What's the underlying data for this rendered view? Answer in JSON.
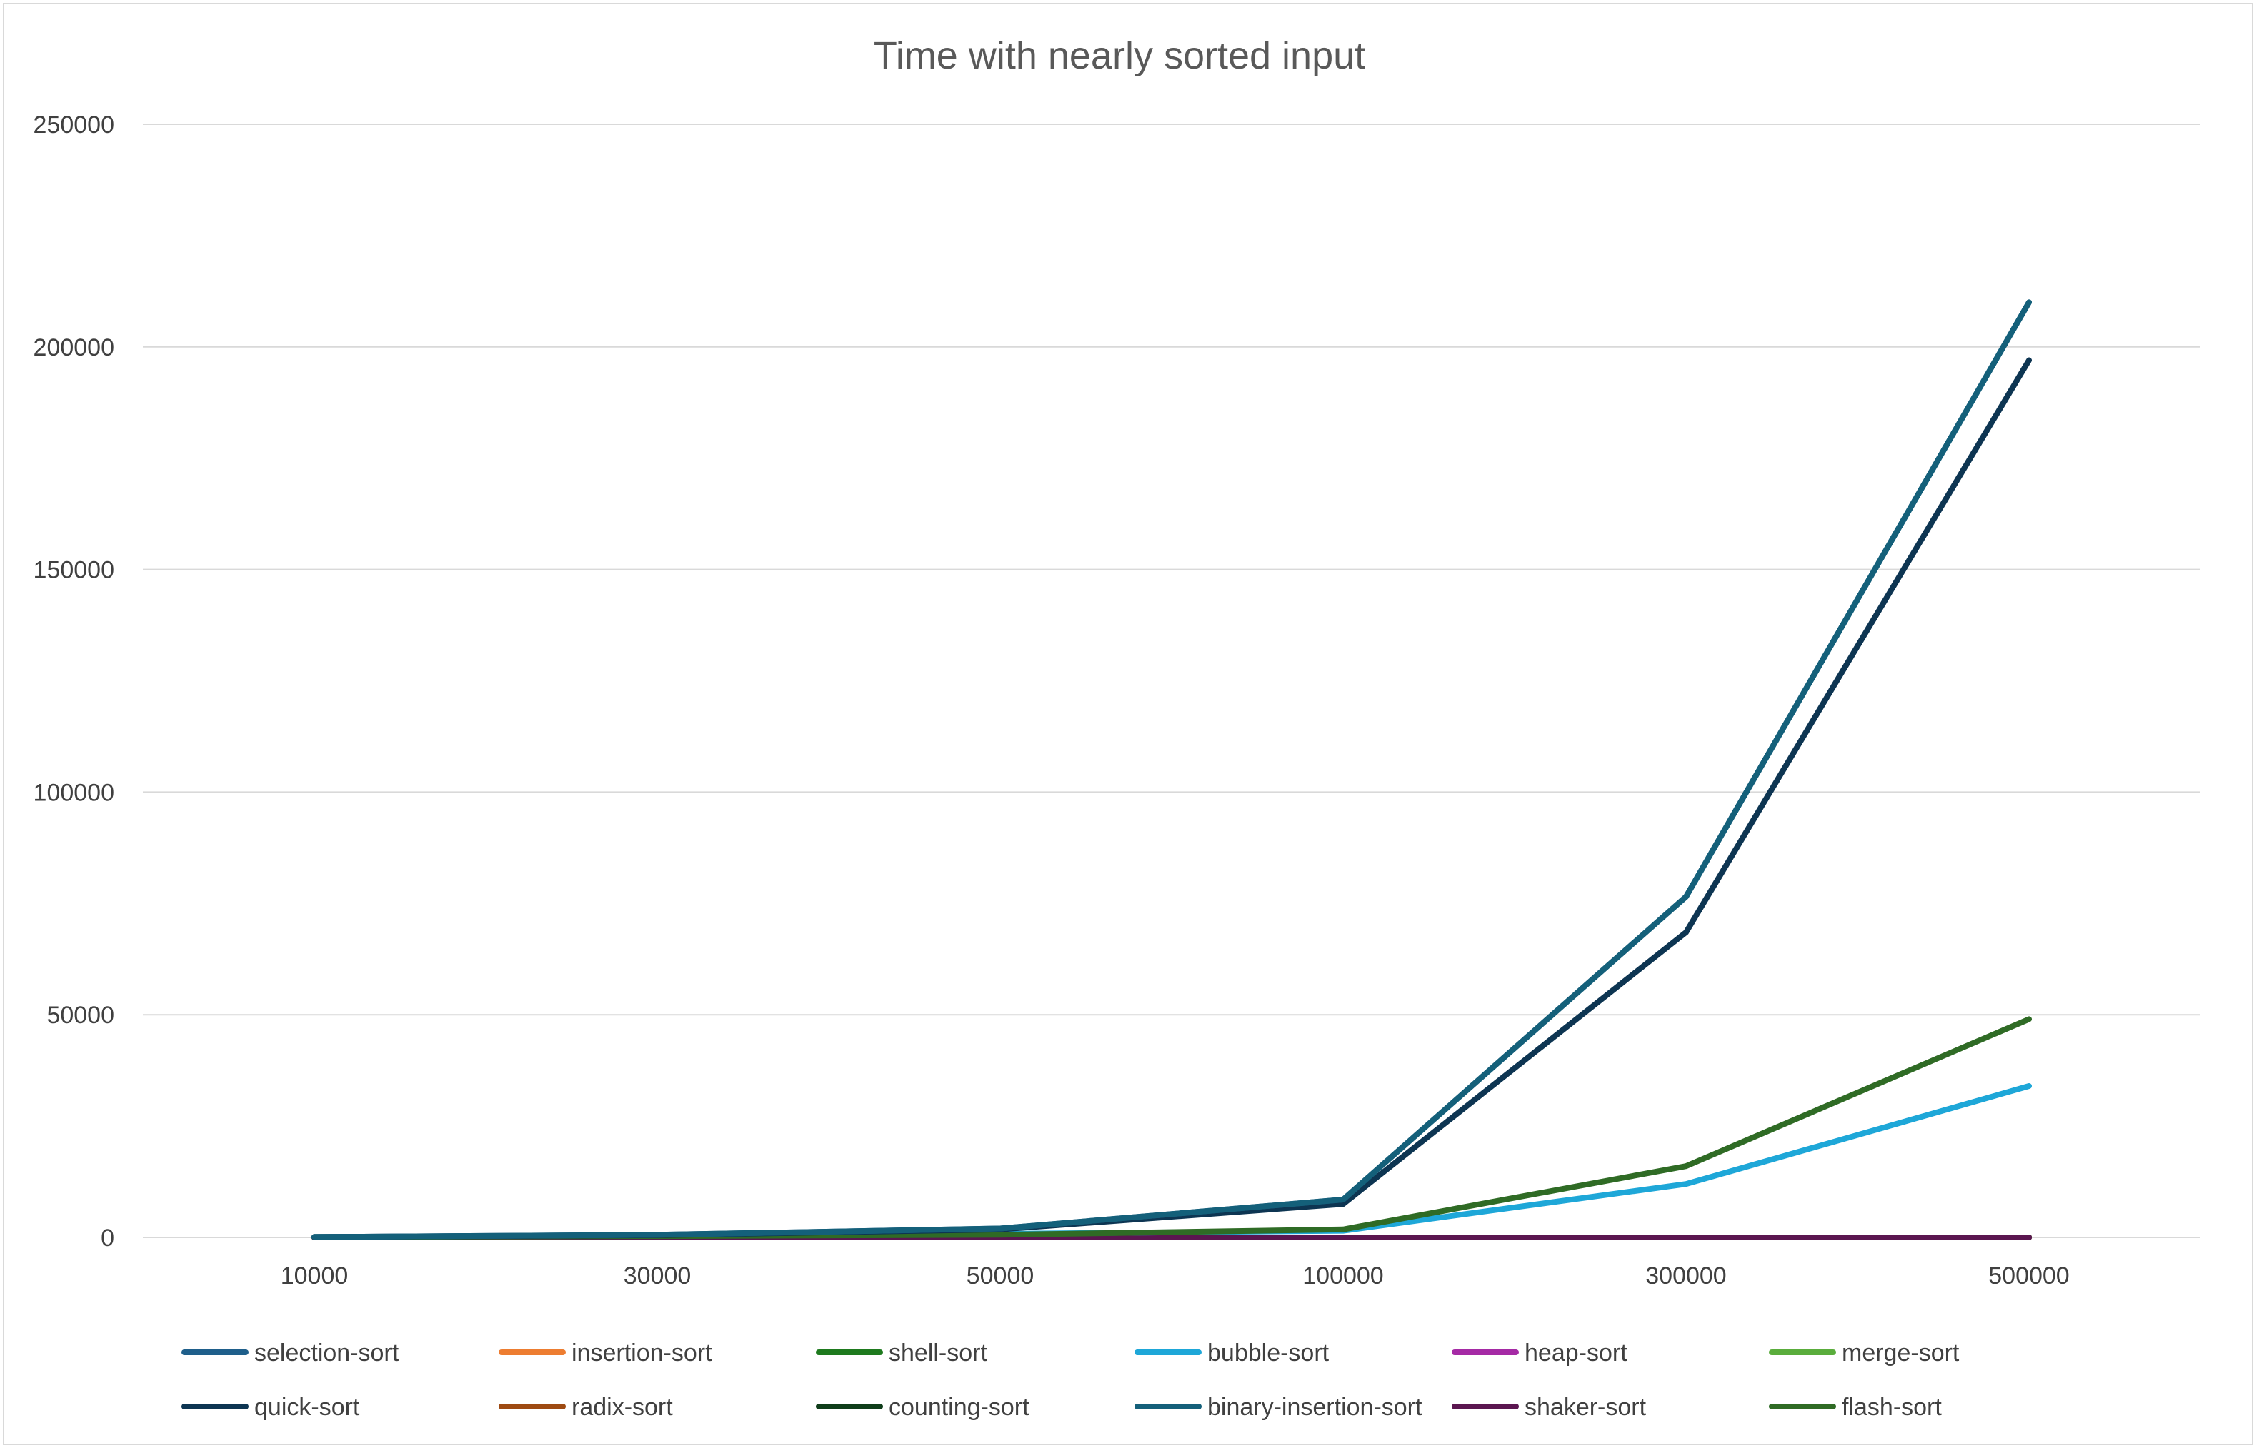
{
  "chart_data": {
    "type": "line",
    "title": "Time with nearly sorted input",
    "xlabel": "",
    "ylabel": "",
    "categories": [
      "10000",
      "30000",
      "50000",
      "100000",
      "300000",
      "500000"
    ],
    "ylim": [
      0,
      250000
    ],
    "yticks": [
      "0",
      "50000",
      "100000",
      "150000",
      "200000",
      "250000"
    ],
    "grid": true,
    "legend_position": "bottom",
    "series": [
      {
        "name": "selection-sort",
        "color": "#1f5f8b",
        "values": [
          100,
          600,
          2000,
          8500,
          76500,
          210000
        ]
      },
      {
        "name": "insertion-sort",
        "color": "#ed7d31",
        "values": [
          0,
          0,
          0,
          0,
          0,
          0
        ]
      },
      {
        "name": "shell-sort",
        "color": "#1e7a1e",
        "values": [
          0,
          0,
          0,
          0,
          0,
          0
        ]
      },
      {
        "name": "bubble-sort",
        "color": "#1ea7d8",
        "values": [
          100,
          400,
          800,
          1500,
          12000,
          34000
        ]
      },
      {
        "name": "heap-sort",
        "color": "#a52aa5",
        "values": [
          0,
          0,
          0,
          0,
          0,
          0
        ]
      },
      {
        "name": "merge-sort",
        "color": "#5aad3c",
        "values": [
          0,
          0,
          0,
          0,
          0,
          0
        ]
      },
      {
        "name": "quick-sort",
        "color": "#0d3552",
        "values": [
          100,
          500,
          1800,
          7500,
          68500,
          197000
        ]
      },
      {
        "name": "radix-sort",
        "color": "#9e4a12",
        "values": [
          0,
          0,
          0,
          0,
          0,
          0
        ]
      },
      {
        "name": "counting-sort",
        "color": "#0f3d1a",
        "values": [
          0,
          0,
          0,
          0,
          0,
          0
        ]
      },
      {
        "name": "binary-insertion-sort",
        "color": "#14607a",
        "values": [
          100,
          600,
          2000,
          8500,
          76500,
          210000
        ]
      },
      {
        "name": "shaker-sort",
        "color": "#5b1650",
        "values": [
          0,
          0,
          0,
          0,
          0,
          0
        ]
      },
      {
        "name": "flash-sort",
        "color": "#2f6b25",
        "values": [
          100,
          300,
          600,
          1800,
          16000,
          49000
        ]
      }
    ]
  }
}
